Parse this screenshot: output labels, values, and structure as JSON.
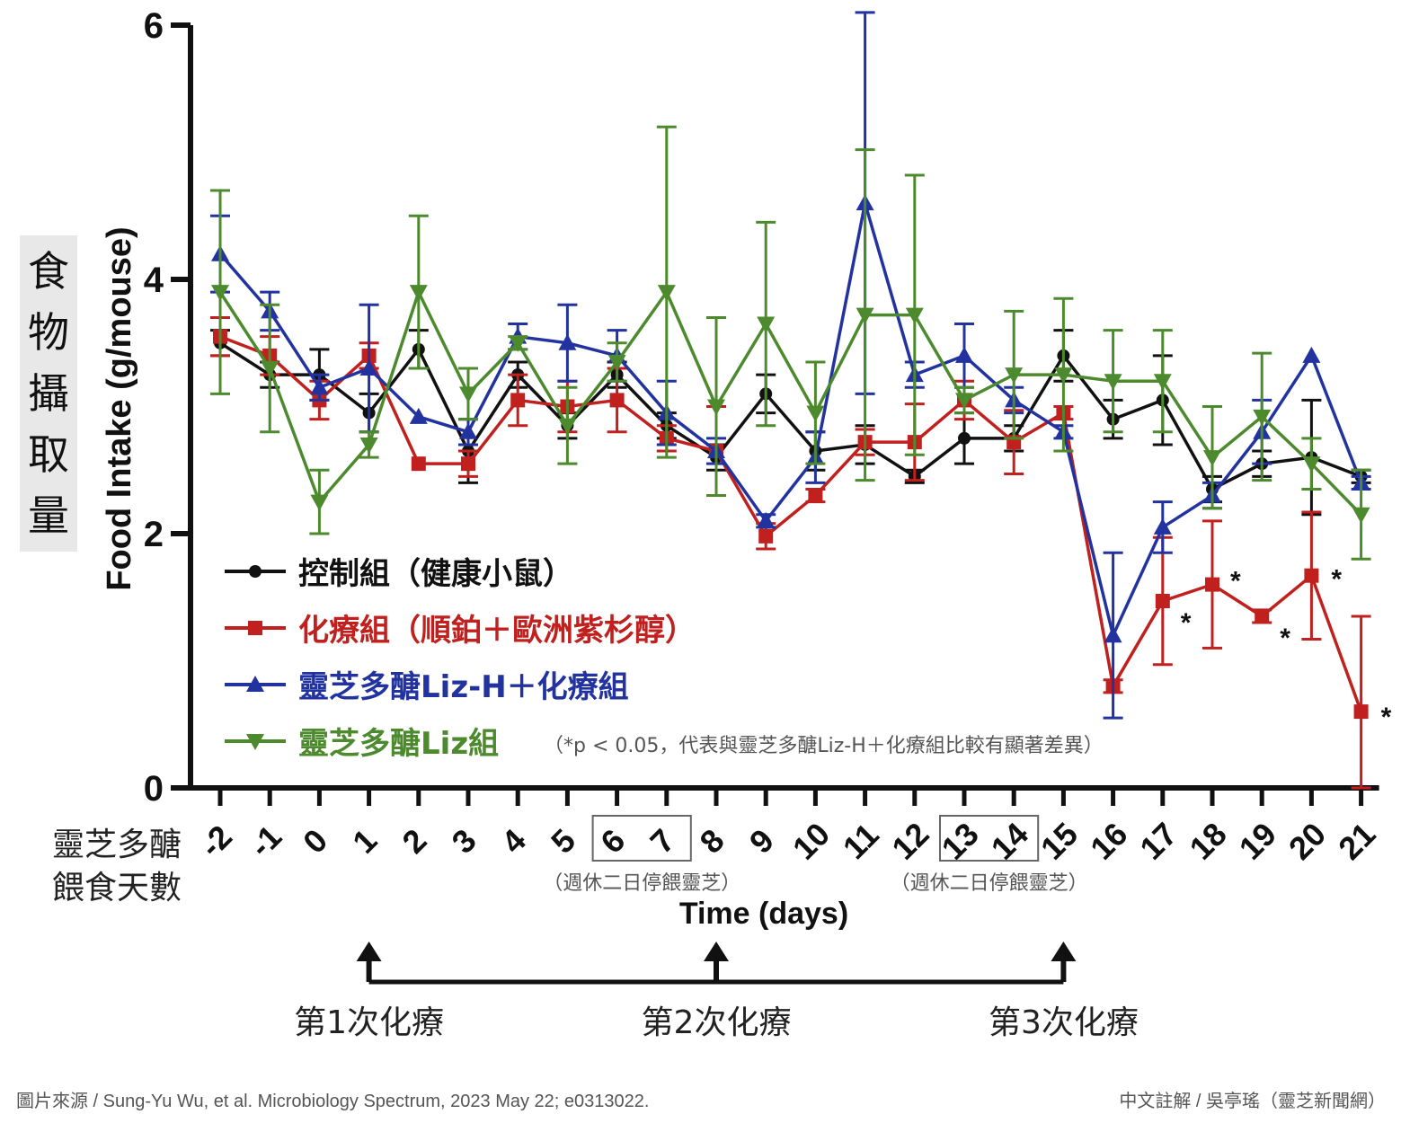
{
  "chart_data": {
    "type": "line",
    "title": "",
    "ylabel": "Food Intake (g/mouse)",
    "ylabel_cn": "食物攝取量",
    "xlabel": "Time (days)",
    "xlabel_cn_line1": "靈芝多醣",
    "xlabel_cn_line2": "餵食天數",
    "ylim": [
      0,
      6
    ],
    "yticks": [
      "0",
      "2",
      "4",
      "6"
    ],
    "x": [
      -2,
      -1,
      0,
      1,
      2,
      3,
      4,
      5,
      6,
      7,
      8,
      9,
      10,
      11,
      12,
      13,
      14,
      15,
      16,
      17,
      18,
      19,
      20,
      21
    ],
    "x_labels": [
      "-2",
      "-1",
      "0",
      "1",
      "2",
      "3",
      "4",
      "5",
      "6",
      "7",
      "8",
      "9",
      "10",
      "11",
      "12",
      "13",
      "14",
      "15",
      "16",
      "17",
      "18",
      "19",
      "20",
      "21"
    ],
    "series": [
      {
        "name": "控制組（健康小鼠）",
        "color": "#111111",
        "marker": "circle",
        "values": [
          3.5,
          3.25,
          3.25,
          2.95,
          3.45,
          2.65,
          3.25,
          2.85,
          3.25,
          2.85,
          2.6,
          3.1,
          2.65,
          2.7,
          2.45,
          2.75,
          2.75,
          3.4,
          2.9,
          3.05,
          2.35,
          2.55,
          2.6,
          2.45
        ],
        "errors": [
          0.1,
          0.1,
          0.2,
          0.15,
          0.15,
          0.25,
          0.1,
          0.1,
          0.1,
          0.1,
          0.1,
          0.15,
          0.15,
          0.15,
          0.05,
          0.2,
          0.1,
          0.2,
          0.15,
          0.35,
          0.1,
          0.1,
          0.45,
          0.05
        ]
      },
      {
        "name": "化療組（順鉑＋歐洲紫杉醇）",
        "color": "#c0201e",
        "marker": "square",
        "values": [
          3.55,
          3.4,
          3.05,
          3.4,
          2.55,
          2.55,
          3.05,
          3.0,
          3.05,
          2.75,
          2.65,
          1.98,
          2.3,
          2.72,
          2.72,
          3.05,
          2.72,
          2.95,
          0.8,
          1.47,
          1.6,
          1.35,
          1.67,
          0.6
        ],
        "errors": [
          0.15,
          0.15,
          0.15,
          0.1,
          0.0,
          0.1,
          0.2,
          0.2,
          0.25,
          0.1,
          0.35,
          0.1,
          0.05,
          0.1,
          0.3,
          0.15,
          0.25,
          0.05,
          0.05,
          0.5,
          0.5,
          0.05,
          0.5,
          0.75
        ]
      },
      {
        "name": "靈芝多醣Liz-H＋化療組",
        "color": "#2233a0",
        "marker": "triangle-up",
        "values": [
          4.2,
          3.75,
          3.15,
          3.3,
          2.92,
          2.8,
          3.55,
          3.5,
          3.4,
          2.95,
          2.65,
          2.1,
          2.6,
          4.6,
          3.25,
          3.4,
          3.05,
          2.8,
          1.2,
          2.05,
          2.3,
          2.8,
          3.4,
          2.4
        ],
        "errors": [
          0.3,
          0.15,
          0.1,
          0.5,
          0.0,
          0.1,
          0.1,
          0.3,
          0.2,
          0.25,
          0.1,
          0.05,
          0.2,
          1.5,
          0.1,
          0.25,
          0.1,
          0.05,
          0.65,
          0.2,
          0.1,
          0.25,
          0.0,
          0.05
        ]
      },
      {
        "name": "靈芝多醣Liz組",
        "color": "#4d8a2e",
        "marker": "triangle-down",
        "values": [
          3.9,
          3.3,
          2.25,
          2.7,
          3.9,
          3.1,
          3.5,
          2.85,
          3.35,
          3.9,
          3.0,
          3.65,
          2.95,
          3.72,
          3.72,
          3.05,
          3.25,
          3.25,
          3.2,
          3.2,
          2.6,
          2.92,
          2.55,
          2.15
        ],
        "errors": [
          0.8,
          0.5,
          0.25,
          0.1,
          0.6,
          0.2,
          0.05,
          0.3,
          0.15,
          1.3,
          0.7,
          0.8,
          0.4,
          1.3,
          1.1,
          0.1,
          0.5,
          0.6,
          0.4,
          0.4,
          0.4,
          0.5,
          0.2,
          0.35
        ]
      }
    ],
    "significance": {
      "marker": "*",
      "days": [
        17,
        18,
        19,
        20,
        21
      ],
      "note": "（*p < 0.05，代表與靈芝多醣Liz-H＋化療組比較有顯著差異）"
    },
    "weekend_boxes": [
      {
        "days": [
          6,
          7
        ],
        "note": "（週休二日停餵靈芝）"
      },
      {
        "days": [
          13,
          14
        ],
        "note": "（週休二日停餵靈芝）"
      }
    ],
    "chemo_events": [
      {
        "day": 1,
        "label": "第1次化療"
      },
      {
        "day": 8,
        "label": "第2次化療"
      },
      {
        "day": 15,
        "label": "第3次化療"
      }
    ],
    "legend_position": "lower-left"
  },
  "footer": {
    "source": "圖片來源 / Sung-Yu Wu, et al. Microbiology Spectrum, 2023 May 22; e0313022.",
    "annotation": "中文註解 / 吳亭瑤（靈芝新聞網）"
  }
}
